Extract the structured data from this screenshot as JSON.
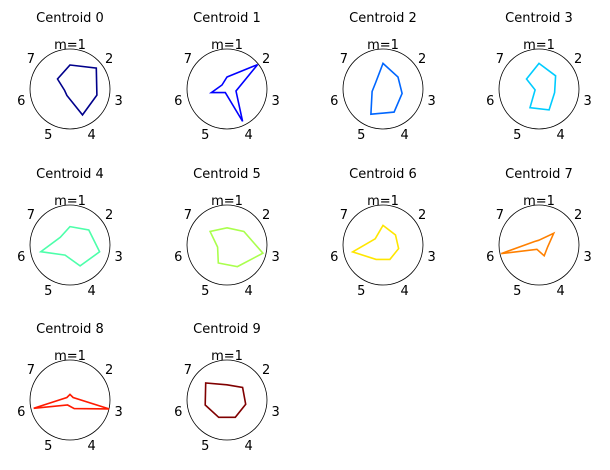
{
  "chart_data": [
    {
      "type": "radar",
      "title": "Centroid 0",
      "categories": [
        "m=1",
        "2",
        "3",
        "4",
        "5",
        "6",
        "7"
      ],
      "color": "#00008b",
      "values": [
        0.6,
        0.84,
        0.69,
        0.72,
        0.18,
        0.14,
        0.4
      ]
    },
    {
      "type": "radar",
      "title": "Centroid 1",
      "categories": [
        "m=1",
        "2",
        "3",
        "4",
        "5",
        "6",
        "7"
      ],
      "color": "#0000ff",
      "values": [
        0.3,
        0.98,
        0.23,
        0.9,
        0.1,
        0.4,
        0.16
      ]
    },
    {
      "type": "radar",
      "title": "Centroid 2",
      "categories": [
        "m=1",
        "2",
        "3",
        "4",
        "5",
        "6",
        "7"
      ],
      "color": "#0066ff",
      "values": [
        0.64,
        0.48,
        0.49,
        0.64,
        0.7,
        0.28,
        0.24
      ]
    },
    {
      "type": "radar",
      "title": "Centroid 3",
      "categories": [
        "m=1",
        "2",
        "3",
        "4",
        "5",
        "6",
        "7"
      ],
      "color": "#00ccff",
      "values": [
        0.64,
        0.53,
        0.4,
        0.58,
        0.52,
        0.1,
        0.4
      ]
    },
    {
      "type": "radar",
      "title": "Centroid 4",
      "categories": [
        "m=1",
        "2",
        "3",
        "4",
        "5",
        "6",
        "7"
      ],
      "color": "#4dffaa",
      "values": [
        0.46,
        0.6,
        0.76,
        0.58,
        0.28,
        0.75,
        0.31
      ]
    },
    {
      "type": "radar",
      "title": "Centroid 5",
      "categories": [
        "m=1",
        "2",
        "3",
        "4",
        "5",
        "6",
        "7"
      ],
      "color": "#aaff4d",
      "values": [
        0.43,
        0.54,
        0.92,
        0.6,
        0.5,
        0.24,
        0.54
      ]
    },
    {
      "type": "radar",
      "title": "Centroid 6",
      "categories": [
        "m=1",
        "2",
        "3",
        "4",
        "5",
        "6",
        "7"
      ],
      "color": "#ffe600",
      "values": [
        0.49,
        0.4,
        0.4,
        0.4,
        0.4,
        0.78,
        0.25
      ]
    },
    {
      "type": "radar",
      "title": "Centroid 7",
      "categories": [
        "m=1",
        "2",
        "3",
        "4",
        "5",
        "6",
        "7"
      ],
      "color": "#ff8000",
      "values": [
        0.12,
        0.47,
        0.22,
        0.3,
        0.12,
        0.97,
        0.14
      ]
    },
    {
      "type": "radar",
      "title": "Centroid 8",
      "categories": [
        "m=1",
        "2",
        "3",
        "4",
        "5",
        "6",
        "7"
      ],
      "color": "#ff1a00",
      "values": [
        0.14,
        0.1,
        1.0,
        0.24,
        0.14,
        0.93,
        0.1
      ]
    },
    {
      "type": "radar",
      "title": "Centroid 9",
      "categories": [
        "m=1",
        "2",
        "3",
        "4",
        "5",
        "6",
        "7"
      ],
      "color": "#800000",
      "values": [
        0.38,
        0.5,
        0.48,
        0.48,
        0.48,
        0.56,
        0.68
      ]
    }
  ]
}
